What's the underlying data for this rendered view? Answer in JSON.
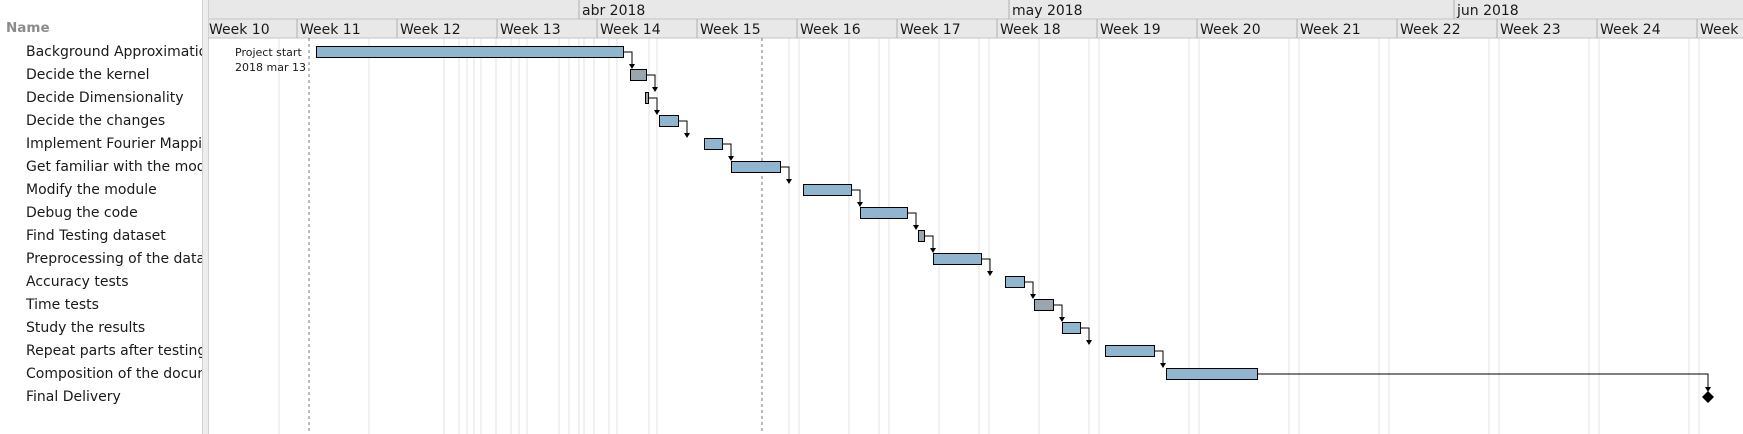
{
  "tree": {
    "header": "Name",
    "tasks": [
      "Background Approximation",
      "Decide the kernel",
      "Decide Dimensionality",
      "Decide the changes",
      "Implement Fourier Mapping",
      "Get familiar with the module",
      "Modify the module",
      "Debug the code",
      "Find Testing dataset",
      "Preprocessing of the data",
      "Accuracy tests",
      "Time tests",
      "Study the results",
      "Repeat parts after testing",
      "Composition of the document",
      "Final Delivery"
    ]
  },
  "timeline": {
    "months": [
      "abr 2018",
      "may 2018",
      "jun 2018"
    ],
    "weeks": [
      "Week 10",
      "Week 11",
      "Week 12",
      "Week 13",
      "Week 14",
      "Week 15",
      "Week 16",
      "Week 17",
      "Week 18",
      "Week 19",
      "Week 20",
      "Week 21",
      "Week 22",
      "Week 23",
      "Week 24",
      "Week"
    ],
    "project_start_label": "Project start",
    "project_start_date": "2018 mar 13"
  },
  "colors": {
    "bar_blue": "#8fb5cf",
    "bar_gray": "#9aa5ae",
    "bar_border": "#000000",
    "header_bg": "#e8e8e8",
    "weekend_line": "#e3e3e3"
  }
}
